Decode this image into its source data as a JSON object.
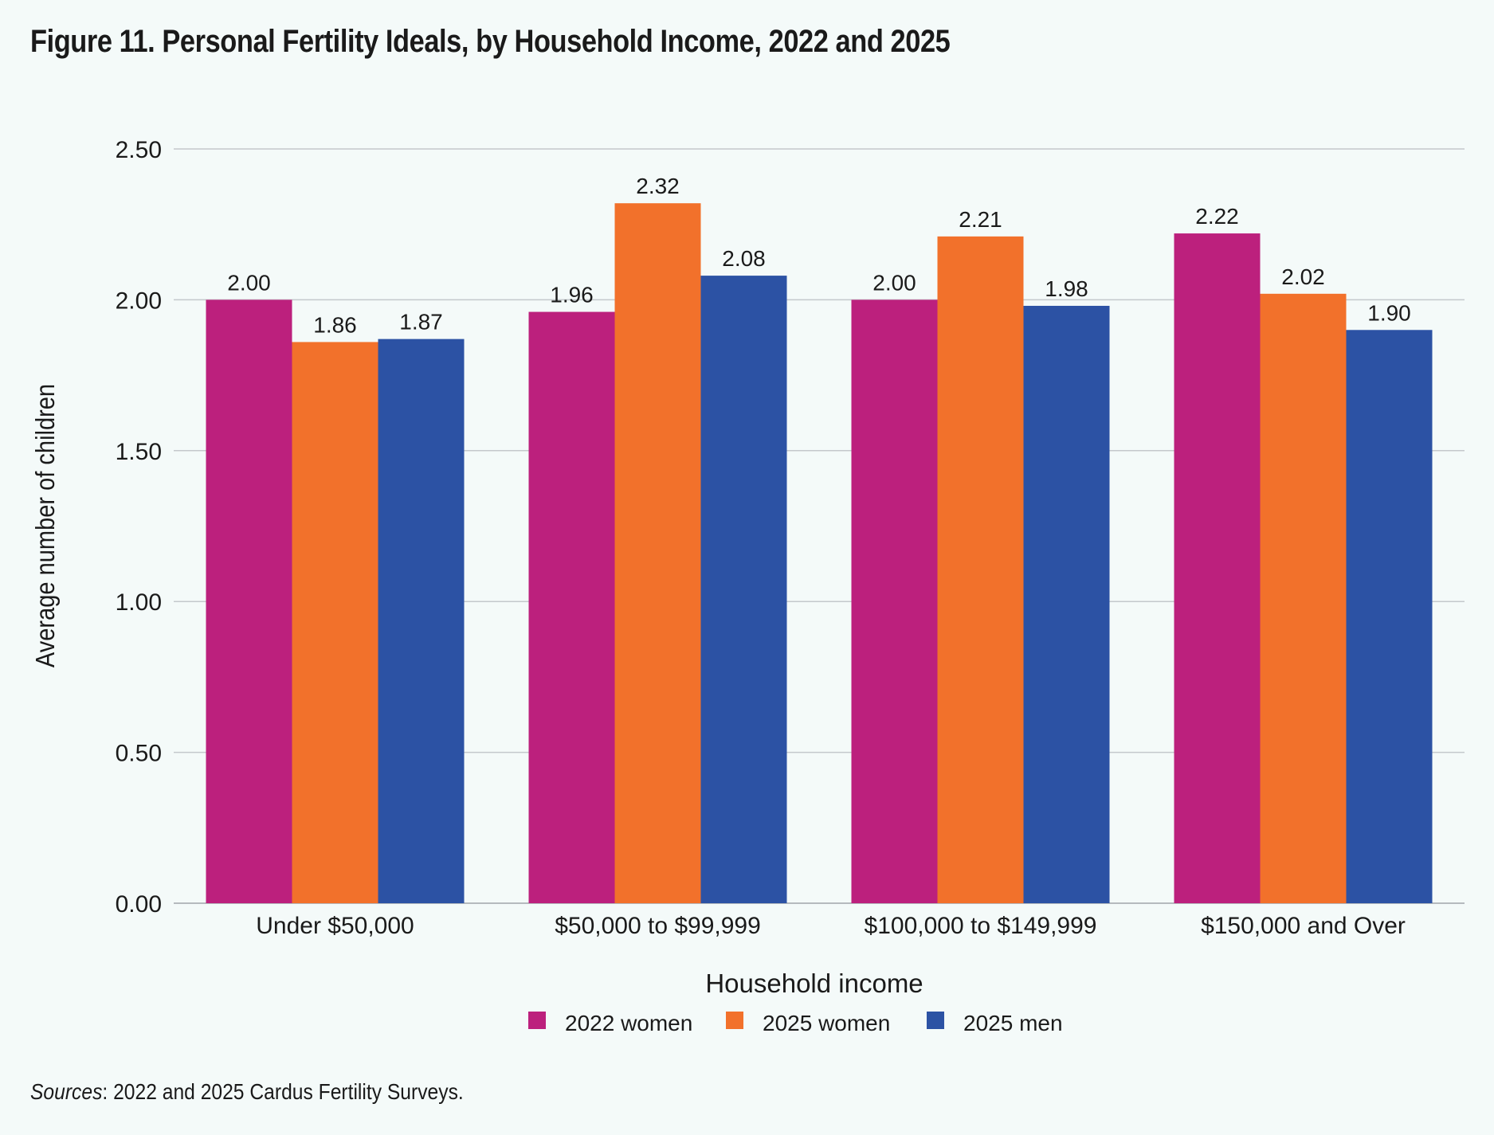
{
  "title": "Figure 11. Personal Fertility Ideals, by Household Income, 2022 and 2025",
  "source": {
    "label": "Sources",
    "text": ": 2022 and 2025 Cardus Fertility Surveys."
  },
  "chart_data": {
    "type": "bar",
    "title": "Figure 11. Personal Fertility Ideals, by Household Income, 2022 and 2025",
    "xlabel": "Household income",
    "ylabel": "Average number of children",
    "ylim": [
      0,
      2.5
    ],
    "yticks": [
      "0.00",
      "0.50",
      "1.00",
      "1.50",
      "2.00",
      "2.50"
    ],
    "grid": true,
    "legend_position": "bottom",
    "categories": [
      "Under $50,000",
      "$50,000 to $99,999",
      "$100,000 to $149,999",
      "$150,000 and Over"
    ],
    "series": [
      {
        "name": "2022 women",
        "color": "#bc207d",
        "values": [
          2.0,
          1.96,
          2.0,
          2.22
        ]
      },
      {
        "name": "2025 women",
        "color": "#f2712b",
        "values": [
          1.86,
          2.32,
          2.21,
          2.02
        ]
      },
      {
        "name": "2025 men",
        "color": "#2c52a4",
        "values": [
          1.87,
          2.08,
          1.98,
          1.9
        ]
      }
    ]
  }
}
